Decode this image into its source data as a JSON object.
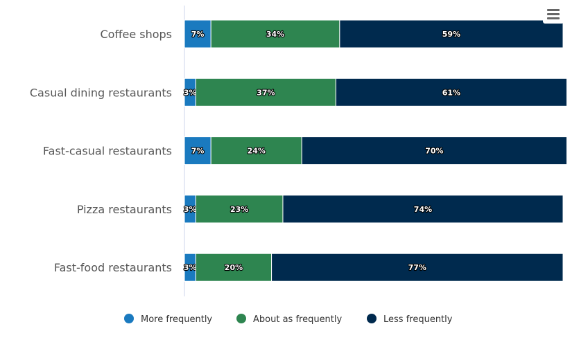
{
  "chart_data": {
    "type": "bar",
    "orientation": "horizontal",
    "stacked": "percent",
    "categories": [
      "Coffee shops",
      "Casual dining restaurants",
      "Fast-casual restaurants",
      "Pizza restaurants",
      "Fast-food restaurants"
    ],
    "series": [
      {
        "name": "More frequently",
        "color": "#1a7abf",
        "values": [
          7,
          3,
          7,
          3,
          3
        ]
      },
      {
        "name": "About as frequently",
        "color": "#2e8550",
        "values": [
          34,
          37,
          24,
          23,
          20
        ]
      },
      {
        "name": "Less frequently",
        "color": "#002a4e",
        "values": [
          59,
          61,
          70,
          74,
          77
        ]
      }
    ],
    "xlim": [
      0,
      100
    ],
    "data_label_suffix": "%",
    "legend": "bottom-center",
    "grid": false
  },
  "menu_icon": "hamburger-menu-icon"
}
